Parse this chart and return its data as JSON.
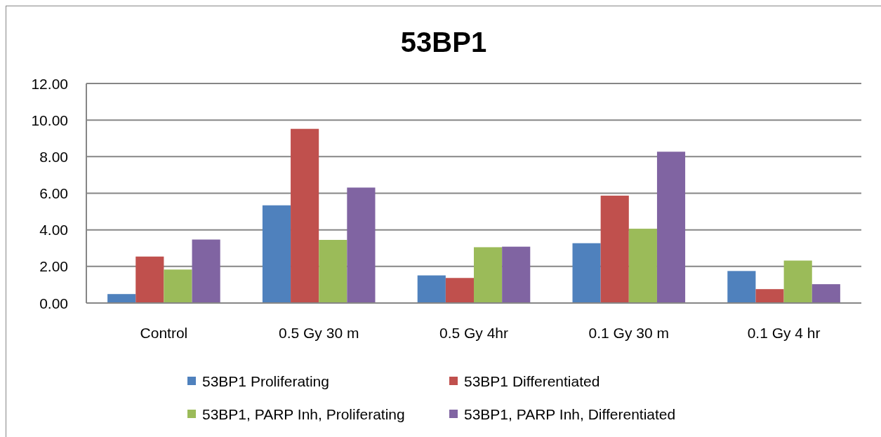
{
  "chart_data": {
    "type": "bar",
    "title": "53BP1",
    "categories": [
      "Control",
      "0.5 Gy 30 m",
      "0.5 Gy 4hr",
      "0.1 Gy 30 m",
      "0.1 Gy 4 hr"
    ],
    "series": [
      {
        "name": "53BP1 Proliferating",
        "color": "#4f81bd",
        "values": [
          0.49,
          5.34,
          1.51,
          3.27,
          1.75
        ]
      },
      {
        "name": "53BP1 Differentiated",
        "color": "#c0504d",
        "values": [
          2.54,
          9.52,
          1.37,
          5.87,
          0.76
        ]
      },
      {
        "name": "53BP1, PARP Inh, Proliferating",
        "color": "#9bbb59",
        "values": [
          1.83,
          3.45,
          3.05,
          4.06,
          2.32
        ]
      },
      {
        "name": "53BP1, PARP Inh, Differentiated",
        "color": "#8064a2",
        "values": [
          3.47,
          6.31,
          3.08,
          8.27,
          1.03
        ]
      }
    ],
    "ylim": [
      0,
      12
    ],
    "yticks": [
      {
        "value": 0,
        "label": "0.00"
      },
      {
        "value": 2,
        "label": "2.00"
      },
      {
        "value": 4,
        "label": "4.00"
      },
      {
        "value": 6,
        "label": "6.00"
      },
      {
        "value": 8,
        "label": "8.00"
      },
      {
        "value": 10,
        "label": "10.00"
      },
      {
        "value": 12,
        "label": "12.00"
      }
    ],
    "grid": "y",
    "legend": "bottom"
  }
}
